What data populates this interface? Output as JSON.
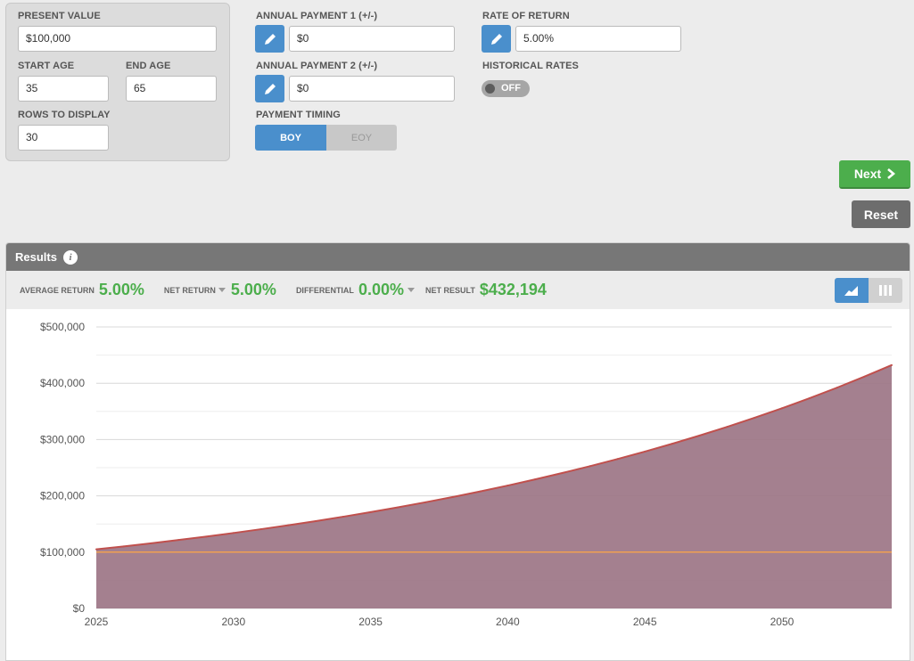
{
  "inputs": {
    "present_value": {
      "label": "PRESENT VALUE",
      "value": "$100,000"
    },
    "start_age": {
      "label": "START AGE",
      "value": "35"
    },
    "end_age": {
      "label": "END AGE",
      "value": "65"
    },
    "rows": {
      "label": "ROWS TO DISPLAY",
      "value": "30"
    },
    "payment1": {
      "label": "ANNUAL PAYMENT 1 (+/-)",
      "value": "$0"
    },
    "payment2": {
      "label": "ANNUAL PAYMENT 2 (+/-)",
      "value": "$0"
    },
    "timing": {
      "label": "PAYMENT TIMING",
      "options": [
        "BOY",
        "EOY"
      ],
      "selected": "BOY"
    },
    "rate": {
      "label": "RATE OF RETURN",
      "value": "5.00%"
    },
    "historical": {
      "label": "HISTORICAL RATES",
      "state": "OFF"
    }
  },
  "buttons": {
    "next": "Next",
    "reset": "Reset"
  },
  "results": {
    "title": "Results",
    "info_icon": "i",
    "stats": [
      {
        "label": "AVERAGE RETURN",
        "value": "5.00%"
      },
      {
        "label": "NET RETURN",
        "value": "5.00%"
      },
      {
        "label": "DIFFERENTIAL",
        "value": "0.00%"
      },
      {
        "label": "NET RESULT",
        "value": "$432,194"
      }
    ]
  },
  "colors": {
    "accent_blue": "#4a8fcc",
    "green": "#4cae4c",
    "area_fill": "#9c7585",
    "area_line": "#c0504d",
    "baseline": "#f0a050"
  },
  "chart_data": {
    "type": "area",
    "x_ticks": [
      2025,
      2030,
      2035,
      2040,
      2045,
      2050
    ],
    "y_ticks": [
      "$0",
      "$100,000",
      "$200,000",
      "$300,000",
      "$400,000",
      "$500,000"
    ],
    "ylim": [
      0,
      500000
    ],
    "xlim": [
      2025,
      2054
    ],
    "grid": true,
    "series": [
      {
        "values": [
          105000,
          110250,
          115763,
          121551,
          127628,
          134010,
          140710,
          147746,
          155133,
          162889,
          171034,
          179586,
          188565,
          197993,
          207893,
          218287,
          229202,
          240662,
          252695,
          265330,
          278596,
          292526,
          307152,
          322510,
          338635,
          355567,
          373346,
          392013,
          411614,
          432194
        ]
      },
      {
        "values": [
          100000,
          100000,
          100000,
          100000,
          100000,
          100000,
          100000,
          100000,
          100000,
          100000,
          100000,
          100000,
          100000,
          100000,
          100000,
          100000,
          100000,
          100000,
          100000,
          100000,
          100000,
          100000,
          100000,
          100000,
          100000,
          100000,
          100000,
          100000,
          100000,
          100000
        ]
      }
    ]
  }
}
